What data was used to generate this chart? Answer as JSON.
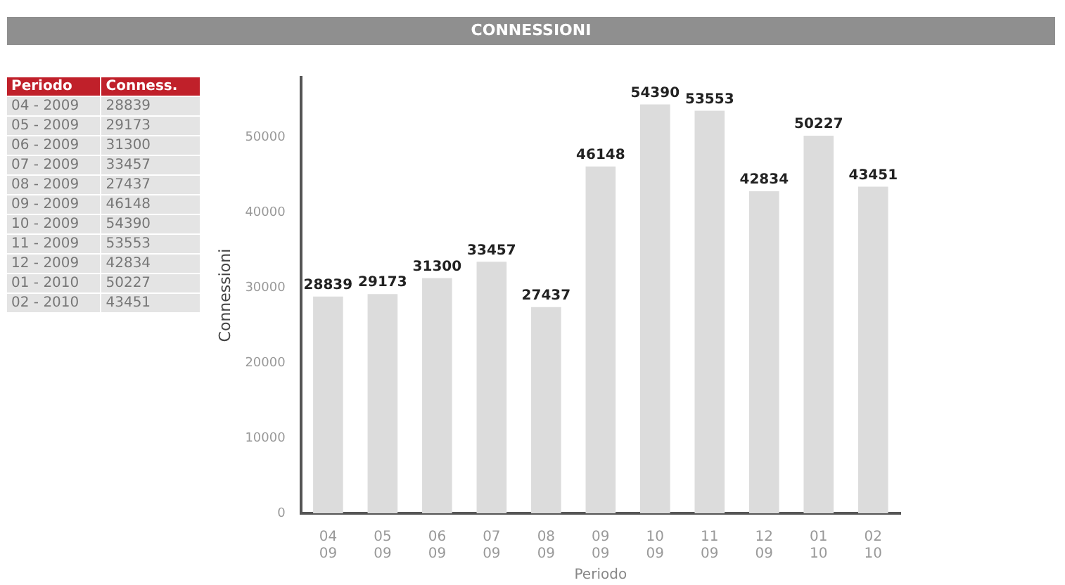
{
  "chart_data": {
    "type": "bar",
    "title": "CONNESSIONI",
    "xlabel": "Periodo",
    "ylabel": "Connessioni",
    "categories": [
      "04 09",
      "05 09",
      "06 09",
      "07 09",
      "08 09",
      "09 09",
      "10 09",
      "11 09",
      "12 09",
      "01 10",
      "02 10"
    ],
    "values": [
      28839,
      29173,
      31300,
      33457,
      27437,
      46148,
      54390,
      53553,
      42834,
      50227,
      43451
    ],
    "color": "#dcdcdc",
    "ylim": [
      0,
      58000
    ],
    "yticks": [
      0,
      10000,
      20000,
      30000,
      40000,
      50000
    ],
    "grid": false,
    "legend": false,
    "data_labels": true,
    "annotations": [
      "Periodo",
      "Conness.",
      "04 - 2009",
      "28839",
      "05 - 2009",
      "29173",
      "06 - 2009",
      "31300",
      "07 - 2009",
      "33457",
      "08 - 2009",
      "27437",
      "09 - 2009",
      "46148",
      "10 - 2009",
      "54390",
      "11 - 2009",
      "53553",
      "12 - 2009",
      "42834",
      "01 - 2010",
      "50227",
      "02 - 2010",
      "43451"
    ]
  }
}
